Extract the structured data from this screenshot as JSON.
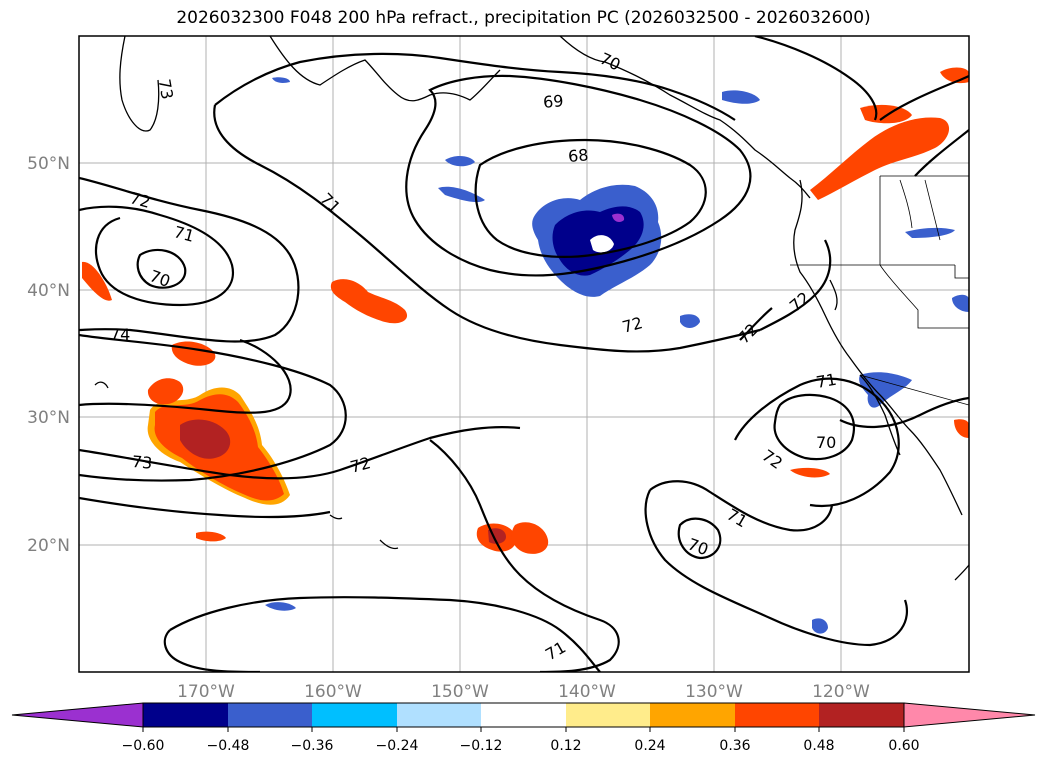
{
  "title": "2026032300 F048 200 hPa refract., precipitation PC (2026032500 - 2026032600)",
  "latitude_labels": [
    "50°N",
    "40°N",
    "30°N",
    "20°N"
  ],
  "longitude_labels": [
    "170°W",
    "160°W",
    "150°W",
    "140°W",
    "130°W",
    "120°W"
  ],
  "contour_labels": [
    "73",
    "72",
    "71",
    "70",
    "74",
    "73",
    "69",
    "70",
    "68",
    "71",
    "72",
    "72",
    "72",
    "72",
    "71",
    "70",
    "72",
    "71",
    "70",
    "71"
  ],
  "colorbar": {
    "ticks": [
      "−0.60",
      "−0.48",
      "−0.36",
      "−0.24",
      "−0.12",
      "0.12",
      "0.24",
      "0.36",
      "0.48",
      "0.60"
    ],
    "colors": [
      "#9b30d0",
      "#00008b",
      "#3a5fcd",
      "#00bfff",
      "#b0e0ff",
      "#ffffff",
      "#ffec8b",
      "#ffa500",
      "#ff4500",
      "#b22222",
      "#ff88aa"
    ]
  }
}
